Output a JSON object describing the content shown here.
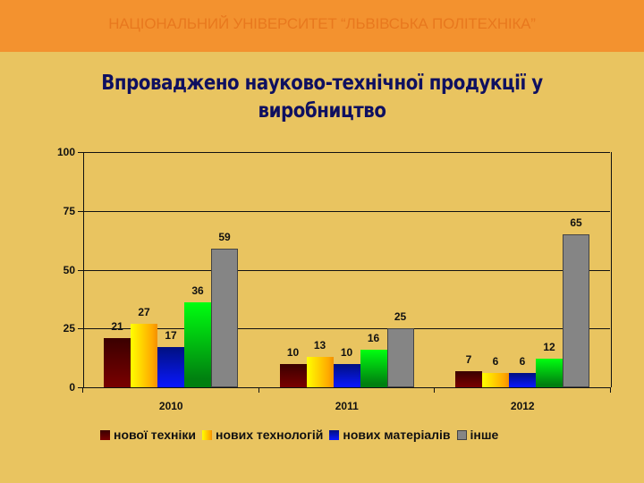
{
  "header": {
    "title": "НАЦІОНАЛЬНИЙ УНІВЕРСИТЕТ “ЛЬВІВСЬКА ПОЛІТЕХНІКА”"
  },
  "slide": {
    "title": "Впроваджено науково-технічної продукції у виробництво"
  },
  "colors": {
    "header_bg": "#F3922F",
    "page_bg": "#E9C460",
    "title": "#0F1060"
  },
  "chart_data": {
    "type": "bar",
    "title": "Впроваджено науково-технічної продукції у виробництво",
    "categories": [
      "2010",
      "2011",
      "2012"
    ],
    "series": [
      {
        "name": "нової техніки",
        "values": [
          21,
          10,
          7
        ],
        "color": "#7a0000"
      },
      {
        "name": "нових технологій",
        "values": [
          27,
          13,
          6
        ],
        "color": "#ffcc00"
      },
      {
        "name": "нових матеріалів",
        "values": [
          17,
          10,
          6
        ],
        "color": "#0a18ff"
      },
      {
        "name": "",
        "values": [
          36,
          16,
          12
        ],
        "color": "#00c010"
      },
      {
        "name": "інше",
        "values": [
          59,
          25,
          65
        ],
        "color": "#858585"
      }
    ],
    "xlabel": "",
    "ylabel": "",
    "ylim": [
      0,
      100
    ],
    "yticks": [
      "0",
      "25",
      "50",
      "75",
      "100"
    ],
    "grid": true,
    "legend_position": "bottom",
    "legend": [
      "нової техніки",
      "нових технологій",
      "нових матеріалів",
      "інше"
    ]
  }
}
